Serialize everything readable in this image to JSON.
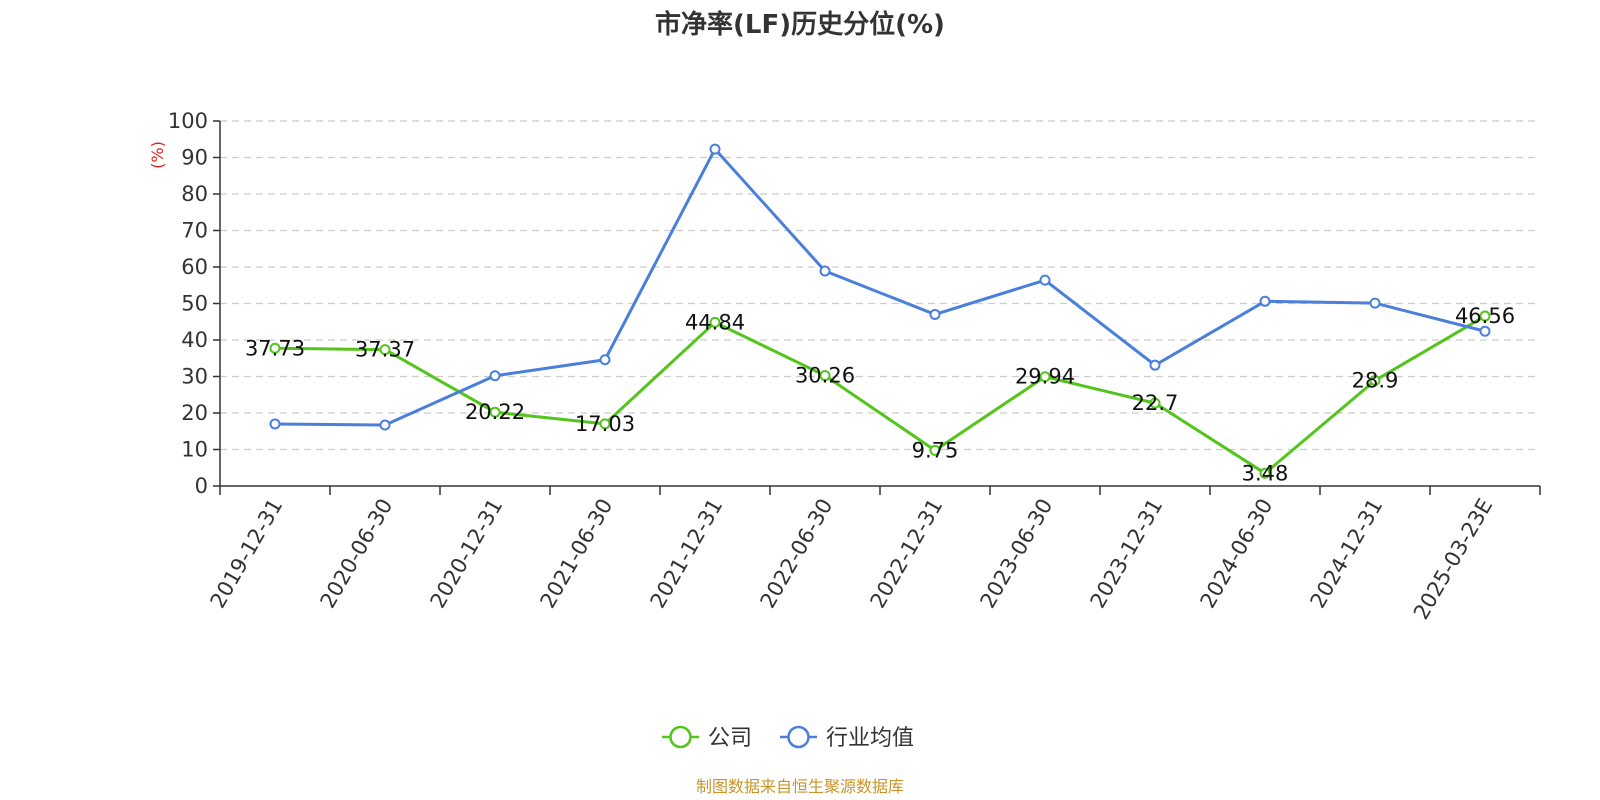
{
  "chart_data": {
    "type": "line",
    "title": "市净率(LF)历史分位(%)",
    "ylabel": "(%)",
    "ylim": [
      0,
      100
    ],
    "yticks": [
      0,
      10,
      20,
      30,
      40,
      50,
      60,
      70,
      80,
      90,
      100
    ],
    "grid": true,
    "legend_position": "bottom",
    "categories": [
      "2019-12-31",
      "2020-06-30",
      "2020-12-31",
      "2021-06-30",
      "2021-12-31",
      "2022-06-30",
      "2022-12-31",
      "2023-06-30",
      "2023-12-31",
      "2024-06-30",
      "2024-12-31",
      "2025-03-23E"
    ],
    "series": [
      {
        "name": "公司",
        "color": "#52c41a",
        "values": [
          37.73,
          37.37,
          20.22,
          17.03,
          44.84,
          30.26,
          9.75,
          29.94,
          22.7,
          3.48,
          28.9,
          46.56
        ],
        "labels": [
          "37.73",
          "37.37",
          "20.22",
          "17.03",
          "44.84",
          "30.26",
          "9.75",
          "29.94",
          "22.7",
          "3.48",
          "28.9",
          "46.56"
        ]
      },
      {
        "name": "行业均值",
        "color": "#4a7fdc",
        "values": [
          17.0,
          16.7,
          30.2,
          34.6,
          92.3,
          58.9,
          47.0,
          56.4,
          33.1,
          50.6,
          50.1,
          42.4
        ]
      }
    ],
    "source": "制图数据来自恒生聚源数据库",
    "source_color": "#c8952b",
    "unit_color": "#e02020"
  }
}
